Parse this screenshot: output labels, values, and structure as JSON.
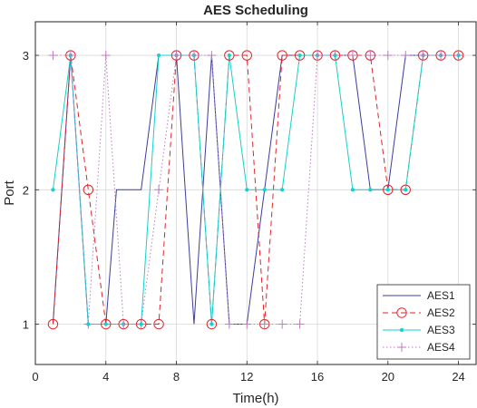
{
  "chart_data": {
    "type": "line",
    "title": "AES Scheduling",
    "xlabel": "Time(h)",
    "ylabel": "Port",
    "xlim": [
      0,
      25
    ],
    "ylim": [
      0.7,
      3.25
    ],
    "xticks": [
      "0",
      "4",
      "8",
      "12",
      "16",
      "20",
      "24"
    ],
    "yticks": [
      "1",
      "2",
      "3"
    ],
    "grid": true,
    "legend_position": "bottom-right",
    "x": [
      1,
      2,
      3,
      4,
      5,
      6,
      7,
      8,
      9,
      10,
      11,
      12,
      13,
      14,
      15,
      16,
      17,
      18,
      19,
      20,
      21,
      22,
      23,
      24
    ],
    "series": [
      {
        "name": "AES1",
        "color": "#3c3c9e",
        "style": "solid",
        "marker": "none",
        "x": [
          1,
          2,
          3,
          4,
          4.6,
          5,
          6,
          7,
          8,
          9,
          10,
          11,
          12,
          13,
          14,
          15,
          16,
          17,
          18,
          19,
          20,
          21,
          22,
          23,
          24
        ],
        "values": [
          1,
          3,
          1,
          1,
          2,
          2,
          2,
          3,
          3,
          1,
          3,
          1,
          1,
          2,
          3,
          3,
          3,
          3,
          3,
          2,
          2,
          3,
          3,
          3,
          3
        ]
      },
      {
        "name": "AES2",
        "color": "#e0242a",
        "style": "dashed",
        "marker": "circle",
        "values": [
          1,
          3,
          2,
          1,
          1,
          1,
          1,
          3,
          3,
          1,
          3,
          3,
          1,
          3,
          3,
          3,
          3,
          3,
          3,
          2,
          2,
          3,
          3,
          3
        ]
      },
      {
        "name": "AES3",
        "color": "#16d0cc",
        "style": "solid",
        "marker": "dot",
        "values": [
          2,
          3,
          1,
          1,
          1,
          1,
          3,
          3,
          3,
          1,
          3,
          2,
          2,
          2,
          3,
          3,
          3,
          2,
          2,
          2,
          2,
          3,
          3,
          3
        ]
      },
      {
        "name": "AES4",
        "color": "#c07ac0",
        "style": "dotted",
        "marker": "plus",
        "values": [
          3,
          3,
          1,
          3,
          1,
          1,
          2,
          3,
          3,
          3,
          1,
          1,
          1,
          1,
          1,
          3,
          3,
          3,
          3,
          3,
          3,
          3,
          3,
          3
        ]
      }
    ]
  }
}
